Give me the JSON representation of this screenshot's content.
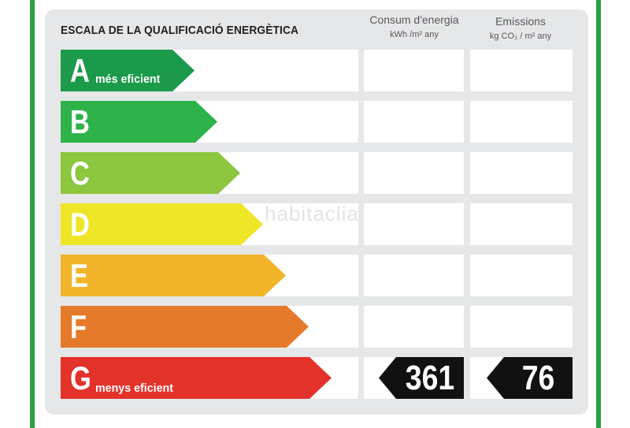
{
  "label": {
    "title": "ESCALA DE LA QUALIFICACIÓ ENERGÈTICA",
    "consum_header": "Consum d'energia",
    "consum_unit": "kWh /m² any",
    "emissions_header": "Emissions",
    "emissions_unit": "kg CO₂ / m² any",
    "watermark": "habitaclia"
  },
  "classes": [
    {
      "letter": "A",
      "note": "més eficient",
      "color": "#1c9a4b"
    },
    {
      "letter": "B",
      "note": "",
      "color": "#2eb34a"
    },
    {
      "letter": "C",
      "note": "",
      "color": "#8dc63f"
    },
    {
      "letter": "D",
      "note": "",
      "color": "#eee626"
    },
    {
      "letter": "E",
      "note": "",
      "color": "#f2b42a"
    },
    {
      "letter": "F",
      "note": "",
      "color": "#e57a2b"
    },
    {
      "letter": "G",
      "note": "menys eficient",
      "color": "#e3322a"
    }
  ],
  "rating": {
    "class": "G",
    "consum_value": "361",
    "emissions_value": "76"
  },
  "colors": {
    "frame_green": "#2aa243",
    "panel_gray": "#e6e7e8",
    "tag_black": "#111111"
  }
}
